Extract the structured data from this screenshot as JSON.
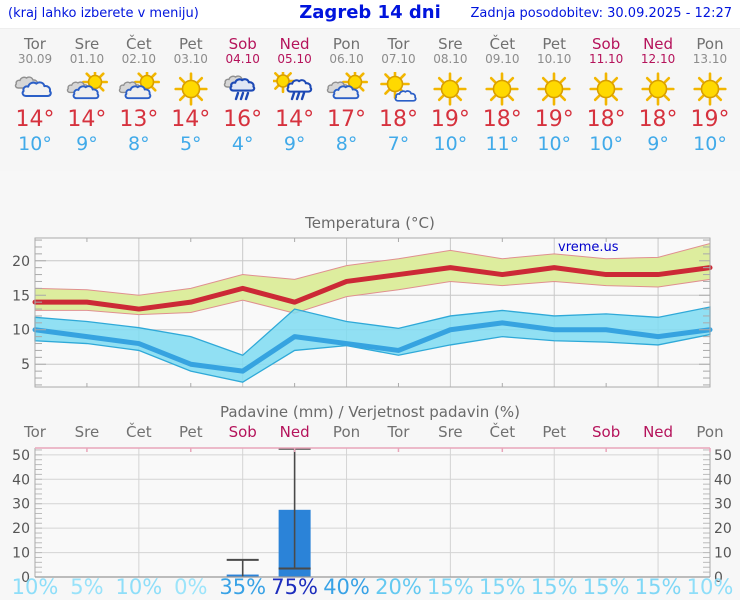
{
  "header": {
    "left_note": "(kraj lahko izberete v meniju)",
    "title": "Zagreb 14 dni",
    "updated": "Zadnja posodobitev: 30.09.2025 - 12:27"
  },
  "watermark": "vreme.us",
  "colors": {
    "header_text": "#0014dd",
    "weekend": "#b5135b",
    "weekday": "#707070",
    "temp_max_text": "#d6323e",
    "temp_min_text": "#41aae9",
    "temp_max_line": "#cc2936",
    "temp_max_band": "#dded9e",
    "temp_max_band_edge": "#e09090",
    "temp_min_line": "#36a3e0",
    "temp_min_band": "#7fdcf2",
    "temp_min_band_edge": "#2fa9d8",
    "bar": "#2b83d8",
    "whisker": "#4a4a4a",
    "precip_top_border": "#e8a6ba",
    "grid": "#cfcfcf",
    "axis_text": "#555555"
  },
  "days": [
    {
      "name": "Tor",
      "date": "30.09",
      "weekend": false,
      "icon": "cloudy",
      "tmax": "14°",
      "tmin": "10°",
      "prob": "10%",
      "prob_color": "#8edef9"
    },
    {
      "name": "Sre",
      "date": "01.10",
      "weekend": false,
      "icon": "sun-cloud",
      "tmax": "14°",
      "tmin": "9°",
      "prob": "5%",
      "prob_color": "#98e2fa"
    },
    {
      "name": "Čet",
      "date": "02.10",
      "weekend": false,
      "icon": "sun-cloud",
      "tmax": "13°",
      "tmin": "8°",
      "prob": "10%",
      "prob_color": "#8edef9"
    },
    {
      "name": "Pet",
      "date": "03.10",
      "weekend": false,
      "icon": "sun",
      "tmax": "14°",
      "tmin": "5°",
      "prob": "0%",
      "prob_color": "#9ce4fa"
    },
    {
      "name": "Sob",
      "date": "04.10",
      "weekend": true,
      "icon": "rain",
      "tmax": "16°",
      "tmin": "4°",
      "prob": "35%",
      "prob_color": "#38a2e6"
    },
    {
      "name": "Ned",
      "date": "05.10",
      "weekend": true,
      "icon": "sun-rain",
      "tmax": "14°",
      "tmin": "9°",
      "prob": "75%",
      "prob_color": "#1c2dbd"
    },
    {
      "name": "Pon",
      "date": "06.10",
      "weekend": false,
      "icon": "sun-cloud",
      "tmax": "17°",
      "tmin": "8°",
      "prob": "40%",
      "prob_color": "#38a2e6"
    },
    {
      "name": "Tor",
      "date": "07.10",
      "weekend": false,
      "icon": "sun-small-cloud",
      "tmax": "18°",
      "tmin": "7°",
      "prob": "20%",
      "prob_color": "#64c9f1"
    },
    {
      "name": "Sre",
      "date": "08.10",
      "weekend": false,
      "icon": "sun",
      "tmax": "19°",
      "tmin": "10°",
      "prob": "15%",
      "prob_color": "#7fd7f6"
    },
    {
      "name": "Čet",
      "date": "09.10",
      "weekend": false,
      "icon": "sun",
      "tmax": "18°",
      "tmin": "11°",
      "prob": "15%",
      "prob_color": "#7fd7f6"
    },
    {
      "name": "Pet",
      "date": "10.10",
      "weekend": false,
      "icon": "sun",
      "tmax": "19°",
      "tmin": "10°",
      "prob": "15%",
      "prob_color": "#7fd7f6"
    },
    {
      "name": "Sob",
      "date": "11.10",
      "weekend": true,
      "icon": "sun",
      "tmax": "18°",
      "tmin": "10°",
      "prob": "15%",
      "prob_color": "#7fd7f6"
    },
    {
      "name": "Ned",
      "date": "12.10",
      "weekend": true,
      "icon": "sun",
      "tmax": "18°",
      "tmin": "9°",
      "prob": "15%",
      "prob_color": "#7fd7f6"
    },
    {
      "name": "Pon",
      "date": "13.10",
      "weekend": false,
      "icon": "sun",
      "tmax": "19°",
      "tmin": "10°",
      "prob": "10%",
      "prob_color": "#8edef9"
    }
  ],
  "chart_data": [
    {
      "type": "line",
      "title": "Temperatura (°C)",
      "categories": [
        "30.09",
        "01.10",
        "02.10",
        "03.10",
        "04.10",
        "05.10",
        "06.10",
        "07.10",
        "08.10",
        "09.10",
        "10.10",
        "11.10",
        "12.10",
        "13.10"
      ],
      "ylim": [
        1.7,
        23.3
      ],
      "yticks": [
        5,
        10,
        15,
        20
      ],
      "grid": "horizontal at yticks, vertical every 2nd day",
      "legend": "none",
      "series": [
        {
          "name": "temp-max",
          "values": [
            14,
            14,
            13,
            14,
            16,
            14,
            17,
            18,
            19,
            18,
            19,
            18,
            18,
            19
          ]
        },
        {
          "name": "temp-max-range-upper",
          "values": [
            16,
            15.8,
            15,
            16,
            18,
            17.3,
            19.3,
            20.3,
            21.5,
            20.3,
            21,
            20.3,
            20.5,
            22.5
          ]
        },
        {
          "name": "temp-max-range-lower",
          "values": [
            12.8,
            12.8,
            12.2,
            12.5,
            14.3,
            12.4,
            14.8,
            15.8,
            17,
            16.4,
            17,
            16.4,
            16.2,
            17.3
          ]
        },
        {
          "name": "temp-min",
          "values": [
            10,
            9,
            8,
            5,
            4,
            9,
            8,
            7,
            10,
            11,
            10,
            10,
            9,
            10
          ]
        },
        {
          "name": "temp-min-range-upper",
          "values": [
            11.8,
            11.2,
            10.3,
            9,
            6.3,
            13,
            11.2,
            10.2,
            12,
            12.8,
            12,
            12.3,
            11.8,
            13.3
          ]
        },
        {
          "name": "temp-min-range-lower",
          "values": [
            8.4,
            8,
            7,
            4,
            2.4,
            7,
            7.7,
            6.3,
            7.8,
            9,
            8.4,
            8.2,
            7.8,
            9.3
          ]
        }
      ]
    },
    {
      "type": "bar",
      "title": "Padavine (mm) / Verjetnost padavin (%)",
      "categories": [
        "Tor",
        "Sre",
        "Čet",
        "Pet",
        "Sob",
        "Ned",
        "Pon",
        "Tor",
        "Sre",
        "Čet",
        "Pet",
        "Sob",
        "Ned",
        "Pon"
      ],
      "weekend_flags": [
        false,
        false,
        false,
        false,
        true,
        true,
        false,
        false,
        false,
        false,
        false,
        true,
        true,
        false
      ],
      "values": [
        0,
        0,
        0,
        0,
        1,
        27.5,
        0,
        0,
        0,
        0,
        0,
        0,
        0,
        0
      ],
      "range_low": [
        null,
        null,
        null,
        null,
        0,
        3.5,
        null,
        null,
        null,
        null,
        null,
        null,
        null,
        null
      ],
      "range_high": [
        null,
        null,
        null,
        null,
        7,
        52.5,
        null,
        null,
        null,
        null,
        null,
        null,
        null,
        null
      ],
      "probabilities_pct": [
        10,
        5,
        10,
        0,
        35,
        75,
        40,
        20,
        15,
        15,
        15,
        15,
        15,
        10
      ],
      "ylim": [
        0,
        52.8
      ],
      "yticks": [
        0,
        10,
        20,
        30,
        40,
        50
      ],
      "ylabel_left_and_right": true
    }
  ]
}
